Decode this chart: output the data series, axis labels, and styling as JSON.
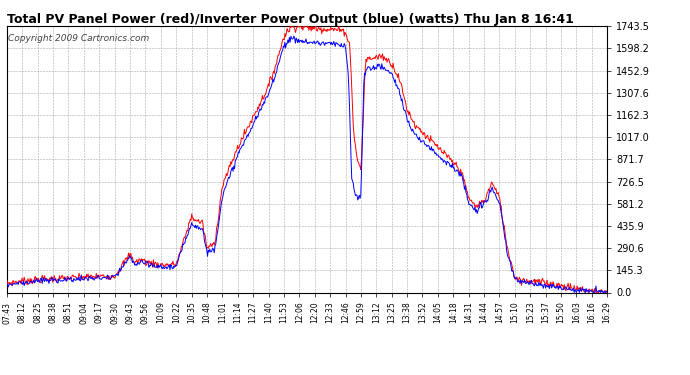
{
  "title": "Total PV Panel Power (red)/Inverter Power Output (blue) (watts) Thu Jan 8 16:41",
  "copyright": "Copyright 2009 Cartronics.com",
  "ymax": 1743.5,
  "ymin": 0.0,
  "yticks": [
    0.0,
    145.3,
    290.6,
    435.9,
    581.2,
    726.5,
    871.7,
    1017.0,
    1162.3,
    1307.6,
    1452.9,
    1598.2,
    1743.5
  ],
  "bg_color": "#ffffff",
  "grid_color": "#aaaaaa",
  "line_color_red": "#ff0000",
  "line_color_blue": "#0000ff",
  "xtick_labels": [
    "07:43",
    "08:12",
    "08:25",
    "08:38",
    "08:51",
    "09:04",
    "09:17",
    "09:30",
    "09:43",
    "09:56",
    "10:09",
    "10:22",
    "10:35",
    "10:48",
    "11:01",
    "11:14",
    "11:27",
    "11:40",
    "11:53",
    "12:06",
    "12:20",
    "12:33",
    "12:46",
    "12:59",
    "13:12",
    "13:25",
    "13:38",
    "13:52",
    "14:05",
    "14:18",
    "14:31",
    "14:44",
    "14:57",
    "15:10",
    "15:23",
    "15:37",
    "15:50",
    "16:03",
    "16:16",
    "16:29"
  ],
  "title_fontsize": 9,
  "copyright_fontsize": 6.5,
  "ytick_fontsize": 7,
  "xtick_fontsize": 5.5,
  "linewidth": 0.7
}
